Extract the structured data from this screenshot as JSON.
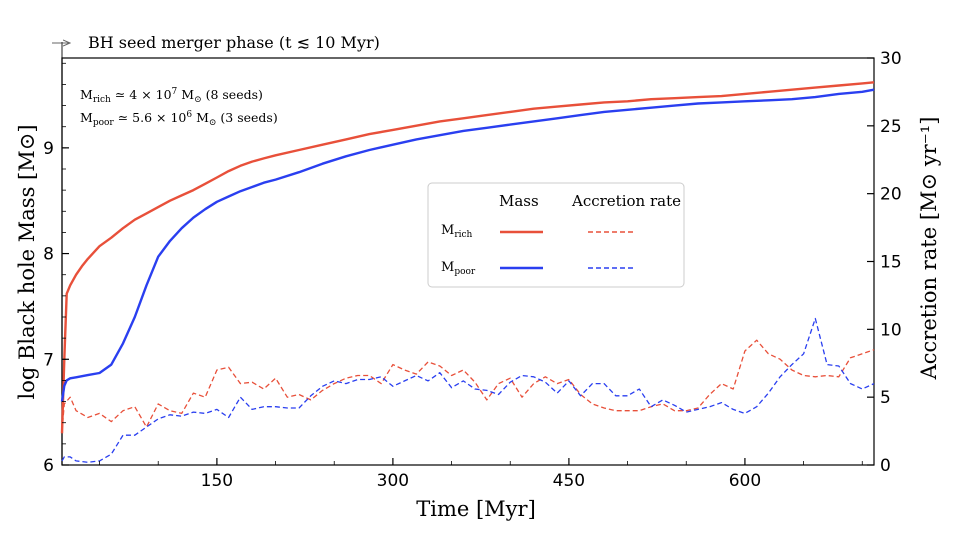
{
  "chart_data": {
    "type": "line",
    "annotation_top": "BH seed merger phase (t ≲ 10 Myr)",
    "xlabel": "Time [Myr]",
    "ylabel_left": "log Black hole Mass [M⊙]",
    "ylabel_right": "Accretion rate [M⊙ yr⁻¹]",
    "xlim": [
      18,
      710
    ],
    "ylim_left": [
      6,
      9.85
    ],
    "ylim_right": [
      0,
      30
    ],
    "x_ticks": [
      150,
      300,
      450,
      600
    ],
    "y_ticks_left": [
      6,
      7,
      8,
      9
    ],
    "y_ticks_right": [
      0,
      5,
      10,
      15,
      20,
      25,
      30
    ],
    "notes": [
      "M_rich ≃ 4 × 10^7 M⊙ (8 seeds)",
      "M_poor ≃ 5.6 × 10^6 M⊙ (3 seeds)"
    ],
    "legend": {
      "placement": "center-right",
      "column_headers": [
        "Mass",
        "Accretion rate"
      ],
      "rows": [
        "M_rich",
        "M_poor"
      ]
    },
    "colors": {
      "rich": "#e8503a",
      "poor": "#2a3ff0"
    },
    "series": [
      {
        "name": "M_rich",
        "kind": "mass",
        "axis": "left",
        "style": "solid",
        "color": "#e8503a",
        "x": [
          18,
          20,
          22,
          25,
          30,
          35,
          40,
          50,
          60,
          70,
          80,
          90,
          100,
          110,
          120,
          130,
          140,
          150,
          160,
          170,
          180,
          190,
          200,
          220,
          240,
          260,
          280,
          300,
          320,
          340,
          360,
          380,
          400,
          420,
          440,
          460,
          480,
          500,
          520,
          540,
          560,
          580,
          600,
          620,
          640,
          660,
          680,
          700,
          710
        ],
        "y": [
          6.3,
          7.0,
          7.62,
          7.7,
          7.8,
          7.88,
          7.95,
          8.07,
          8.15,
          8.24,
          8.32,
          8.38,
          8.44,
          8.5,
          8.55,
          8.6,
          8.66,
          8.72,
          8.78,
          8.83,
          8.87,
          8.9,
          8.93,
          8.98,
          9.03,
          9.08,
          9.13,
          9.17,
          9.21,
          9.25,
          9.28,
          9.31,
          9.34,
          9.37,
          9.39,
          9.41,
          9.43,
          9.44,
          9.46,
          9.47,
          9.48,
          9.49,
          9.51,
          9.53,
          9.55,
          9.57,
          9.59,
          9.61,
          9.62
        ]
      },
      {
        "name": "M_poor",
        "kind": "mass",
        "axis": "left",
        "style": "solid",
        "color": "#2a3ff0",
        "x": [
          18,
          20,
          22,
          25,
          30,
          40,
          50,
          60,
          70,
          80,
          90,
          100,
          110,
          120,
          130,
          140,
          150,
          160,
          170,
          180,
          190,
          200,
          220,
          240,
          260,
          280,
          300,
          320,
          340,
          360,
          380,
          400,
          420,
          440,
          460,
          480,
          500,
          520,
          540,
          560,
          580,
          600,
          620,
          640,
          660,
          680,
          700,
          710
        ],
        "y": [
          6.6,
          6.75,
          6.8,
          6.82,
          6.83,
          6.85,
          6.87,
          6.95,
          7.15,
          7.4,
          7.7,
          7.97,
          8.12,
          8.24,
          8.34,
          8.42,
          8.49,
          8.54,
          8.59,
          8.63,
          8.67,
          8.7,
          8.77,
          8.85,
          8.92,
          8.98,
          9.03,
          9.08,
          9.12,
          9.16,
          9.19,
          9.22,
          9.25,
          9.28,
          9.31,
          9.34,
          9.36,
          9.38,
          9.4,
          9.42,
          9.43,
          9.44,
          9.45,
          9.46,
          9.48,
          9.51,
          9.53,
          9.55
        ]
      },
      {
        "name": "M_rich",
        "kind": "accretion",
        "axis": "right",
        "style": "dashed",
        "color": "#e8503a",
        "x": [
          18,
          20,
          25,
          30,
          40,
          50,
          60,
          70,
          80,
          90,
          100,
          110,
          120,
          130,
          140,
          150,
          160,
          170,
          180,
          190,
          200,
          210,
          220,
          230,
          240,
          250,
          260,
          270,
          280,
          290,
          300,
          310,
          320,
          330,
          340,
          350,
          360,
          370,
          380,
          390,
          400,
          410,
          420,
          430,
          440,
          450,
          460,
          470,
          480,
          490,
          500,
          510,
          520,
          530,
          540,
          550,
          560,
          570,
          580,
          590,
          600,
          610,
          620,
          630,
          640,
          650,
          660,
          670,
          680,
          690,
          700,
          710
        ],
        "y": [
          2.5,
          4.5,
          5.0,
          4.0,
          3.5,
          3.8,
          3.2,
          4.0,
          4.3,
          2.8,
          4.5,
          4.0,
          3.8,
          5.3,
          5.0,
          7.0,
          7.2,
          6.0,
          6.1,
          5.6,
          6.4,
          5.0,
          5.2,
          4.8,
          5.5,
          6.0,
          6.4,
          6.6,
          6.6,
          6.0,
          7.4,
          7.0,
          6.7,
          7.6,
          7.3,
          6.6,
          7.0,
          6.1,
          4.8,
          6.0,
          6.4,
          5.0,
          6.0,
          6.5,
          6.0,
          6.3,
          5.2,
          4.5,
          4.2,
          4.0,
          4.0,
          4.0,
          4.3,
          4.5,
          4.0,
          4.0,
          4.2,
          5.2,
          6.0,
          5.6,
          8.4,
          9.2,
          8.2,
          7.8,
          7.0,
          6.6,
          6.5,
          6.6,
          6.5,
          7.9,
          8.2,
          8.5
        ]
      },
      {
        "name": "M_poor",
        "kind": "accretion",
        "axis": "right",
        "style": "dashed",
        "color": "#2a3ff0",
        "x": [
          18,
          20,
          25,
          30,
          40,
          50,
          60,
          70,
          80,
          90,
          100,
          110,
          120,
          130,
          140,
          150,
          160,
          170,
          180,
          190,
          200,
          210,
          220,
          230,
          240,
          250,
          260,
          270,
          280,
          290,
          300,
          310,
          320,
          330,
          340,
          350,
          360,
          370,
          380,
          390,
          400,
          410,
          420,
          430,
          440,
          450,
          460,
          470,
          480,
          490,
          500,
          510,
          520,
          530,
          540,
          550,
          560,
          570,
          580,
          590,
          600,
          610,
          620,
          630,
          640,
          650,
          660,
          670,
          680,
          690,
          700,
          710
        ],
        "y": [
          0.3,
          0.6,
          0.6,
          0.3,
          0.2,
          0.3,
          0.8,
          2.2,
          2.2,
          2.8,
          3.4,
          3.7,
          3.6,
          3.9,
          3.8,
          4.1,
          3.5,
          5.0,
          4.1,
          4.3,
          4.3,
          4.2,
          4.2,
          5.1,
          5.8,
          6.2,
          6.0,
          6.3,
          6.3,
          6.5,
          5.8,
          6.2,
          6.6,
          6.2,
          6.8,
          5.7,
          6.2,
          5.6,
          5.5,
          5.2,
          6.1,
          6.6,
          6.5,
          6.1,
          5.3,
          6.2,
          5.1,
          6.0,
          6.0,
          5.1,
          5.1,
          5.6,
          4.3,
          4.8,
          4.4,
          3.9,
          4.1,
          4.3,
          4.6,
          4.1,
          3.8,
          4.3,
          5.3,
          6.5,
          7.4,
          8.2,
          10.8,
          7.4,
          7.3,
          6.0,
          5.6,
          6.0
        ]
      }
    ]
  }
}
